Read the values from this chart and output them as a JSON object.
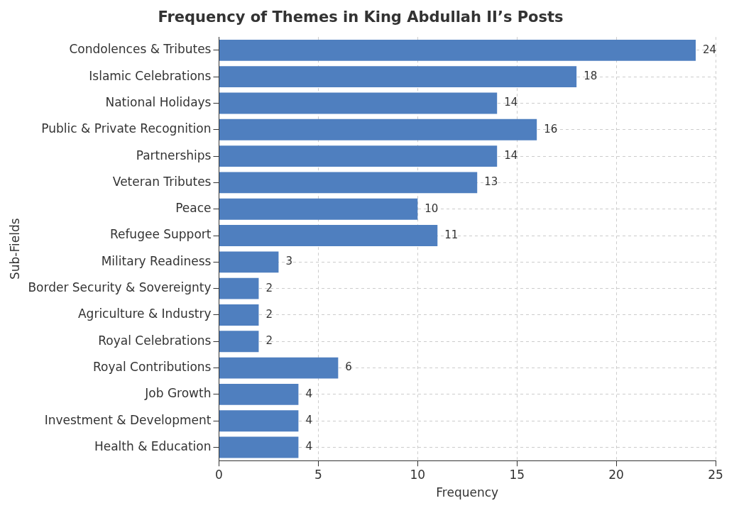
{
  "chart_data": {
    "type": "bar",
    "orientation": "horizontal",
    "title": "Frequency of Themes in King Abdullah II’s Posts",
    "xlabel": "Frequency",
    "ylabel": "Sub-Fields",
    "categories": [
      "Condolences & Tributes",
      "Islamic Celebrations",
      "National Holidays",
      "Public & Private Recognition",
      "Partnerships",
      "Veteran Tributes",
      "Peace",
      "Refugee Support",
      "Military Readiness",
      "Border Security & Sovereignty",
      "Agriculture & Industry",
      "Royal Celebrations",
      "Royal Contributions",
      "Job Growth",
      "Investment & Development",
      "Health & Education"
    ],
    "values": [
      24,
      18,
      14,
      16,
      14,
      13,
      10,
      11,
      3,
      2,
      2,
      2,
      6,
      4,
      4,
      4
    ],
    "color": "#4f7fbf",
    "xlim": [
      0,
      25
    ],
    "xticks": [
      0,
      5,
      10,
      15,
      20,
      25
    ],
    "grid": true,
    "data_labels": true,
    "legend": false
  }
}
